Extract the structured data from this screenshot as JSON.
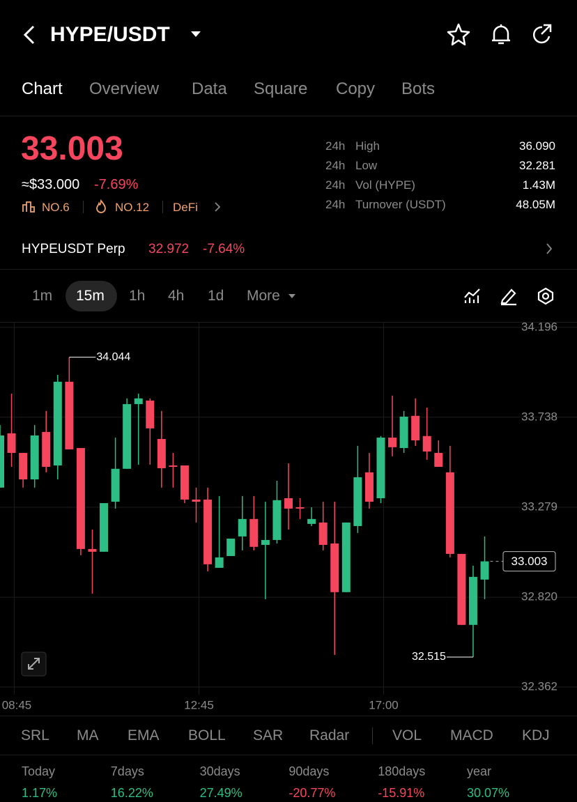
{
  "header": {
    "title": "HYPE/USDT"
  },
  "tabs": [
    "Chart",
    "Overview",
    "Data",
    "Square",
    "Copy",
    "Bots"
  ],
  "ticker": {
    "price": "33.003",
    "usd": "≈$33.000",
    "change": "-7.69%",
    "rank": "NO.6",
    "hot": "NO.12",
    "sector": "DeFi"
  },
  "stats": [
    {
      "period": "24h",
      "label": "High",
      "value": "36.090"
    },
    {
      "period": "24h",
      "label": "Low",
      "value": "32.281"
    },
    {
      "period": "24h",
      "label": "Vol (HYPE)",
      "value": "1.43M"
    },
    {
      "period": "24h",
      "label": "Turnover (USDT)",
      "value": "48.05M"
    }
  ],
  "perp": {
    "name": "HYPEUSDT Perp",
    "price": "32.972",
    "change": "-7.64%"
  },
  "timeframes": [
    "1m",
    "15m",
    "1h",
    "4h",
    "1d",
    "More"
  ],
  "chart_data": {
    "type": "candlestick",
    "categories": [
      null,
      "08:45",
      null,
      null,
      null,
      null,
      null,
      null,
      null,
      null,
      null,
      null,
      null,
      null,
      null,
      null,
      null,
      "12:45",
      null,
      null,
      null,
      null,
      null,
      null,
      null,
      null,
      null,
      null,
      null,
      null,
      null,
      null,
      null,
      "17:00",
      null,
      null,
      null,
      null,
      null,
      null,
      null,
      null,
      null
    ],
    "open": [
      33.379,
      33.656,
      33.556,
      33.421,
      33.663,
      33.492,
      33.919,
      33.581,
      33.066,
      33.052,
      33.307,
      33.475,
      33.805,
      33.823,
      33.627,
      33.492,
      33.492,
      33.318,
      33.318,
      32.97,
      33.03,
      33.13,
      33.219,
      33.087,
      33.112,
      33.325,
      33.279,
      33.194,
      33.201,
      33.094,
      32.846,
      33.183,
      33.457,
      33.325,
      33.634,
      33.581,
      33.745,
      33.642,
      33.556,
      33.457,
      33.041,
      32.679,
      32.91
    ],
    "high": [
      33.698,
      33.858,
      33.556,
      33.698,
      33.77,
      33.954,
      34.044,
      33.581,
      33.165,
      33.3,
      33.634,
      33.834,
      33.858,
      33.834,
      33.77,
      33.556,
      33.492,
      33.379,
      33.379,
      33.336,
      33.119,
      33.336,
      33.336,
      33.307,
      33.414,
      33.503,
      33.325,
      33.279,
      33.307,
      33.307,
      33.201,
      33.592,
      33.556,
      33.642,
      33.848,
      33.77,
      33.834,
      33.787,
      33.62,
      33.592,
      33.041,
      32.981,
      33.13
    ],
    "low": [
      33.379,
      33.485,
      33.379,
      33.379,
      33.457,
      33.421,
      33.574,
      33.034,
      32.838,
      33.052,
      33.272,
      33.475,
      33.496,
      33.496,
      33.379,
      33.379,
      33.3,
      33.201,
      32.952,
      32.97,
      33.03,
      33.059,
      33.059,
      32.81,
      33.094,
      33.165,
      33.219,
      33.183,
      33.059,
      32.526,
      32.846,
      33.148,
      33.272,
      33.3,
      33.539,
      33.556,
      33.592,
      33.521,
      33.485,
      33.023,
      32.679,
      32.515,
      32.81
    ],
    "close": [
      33.645,
      33.556,
      33.421,
      33.645,
      33.485,
      33.919,
      33.574,
      33.066,
      33.052,
      33.3,
      33.475,
      33.805,
      33.834,
      33.681,
      33.478,
      33.485,
      33.318,
      33.307,
      32.988,
      33.023,
      33.119,
      33.219,
      33.077,
      33.112,
      33.315,
      33.272,
      33.272,
      33.219,
      33.087,
      32.846,
      33.201,
      33.432,
      33.307,
      33.634,
      33.585,
      33.741,
      33.62,
      33.563,
      33.485,
      33.041,
      32.679,
      32.924,
      33.003
    ],
    "up_color": "#2ebd85",
    "down_color": "#f6465d",
    "ylim": [
      32.323,
      34.224
    ],
    "yticks": [
      34.196,
      33.738,
      33.279,
      {
        "value": 32.82,
        "label": "32.820"
      },
      32.362
    ],
    "grid": true
  },
  "indicators": [
    "SRL",
    "MA",
    "EMA",
    "BOLL",
    "SAR",
    "Radar",
    "VOL",
    "MACD",
    "KDJ"
  ],
  "returns": [
    {
      "period": "Today",
      "value": "1.17%"
    },
    {
      "period": "7days",
      "value": "16.22%"
    },
    {
      "period": "30days",
      "value": "27.49%"
    },
    {
      "period": "90days",
      "value": "-20.77%"
    },
    {
      "period": "180days",
      "value": "-15.91%"
    },
    {
      "period": "year",
      "value": "30.07%"
    }
  ]
}
